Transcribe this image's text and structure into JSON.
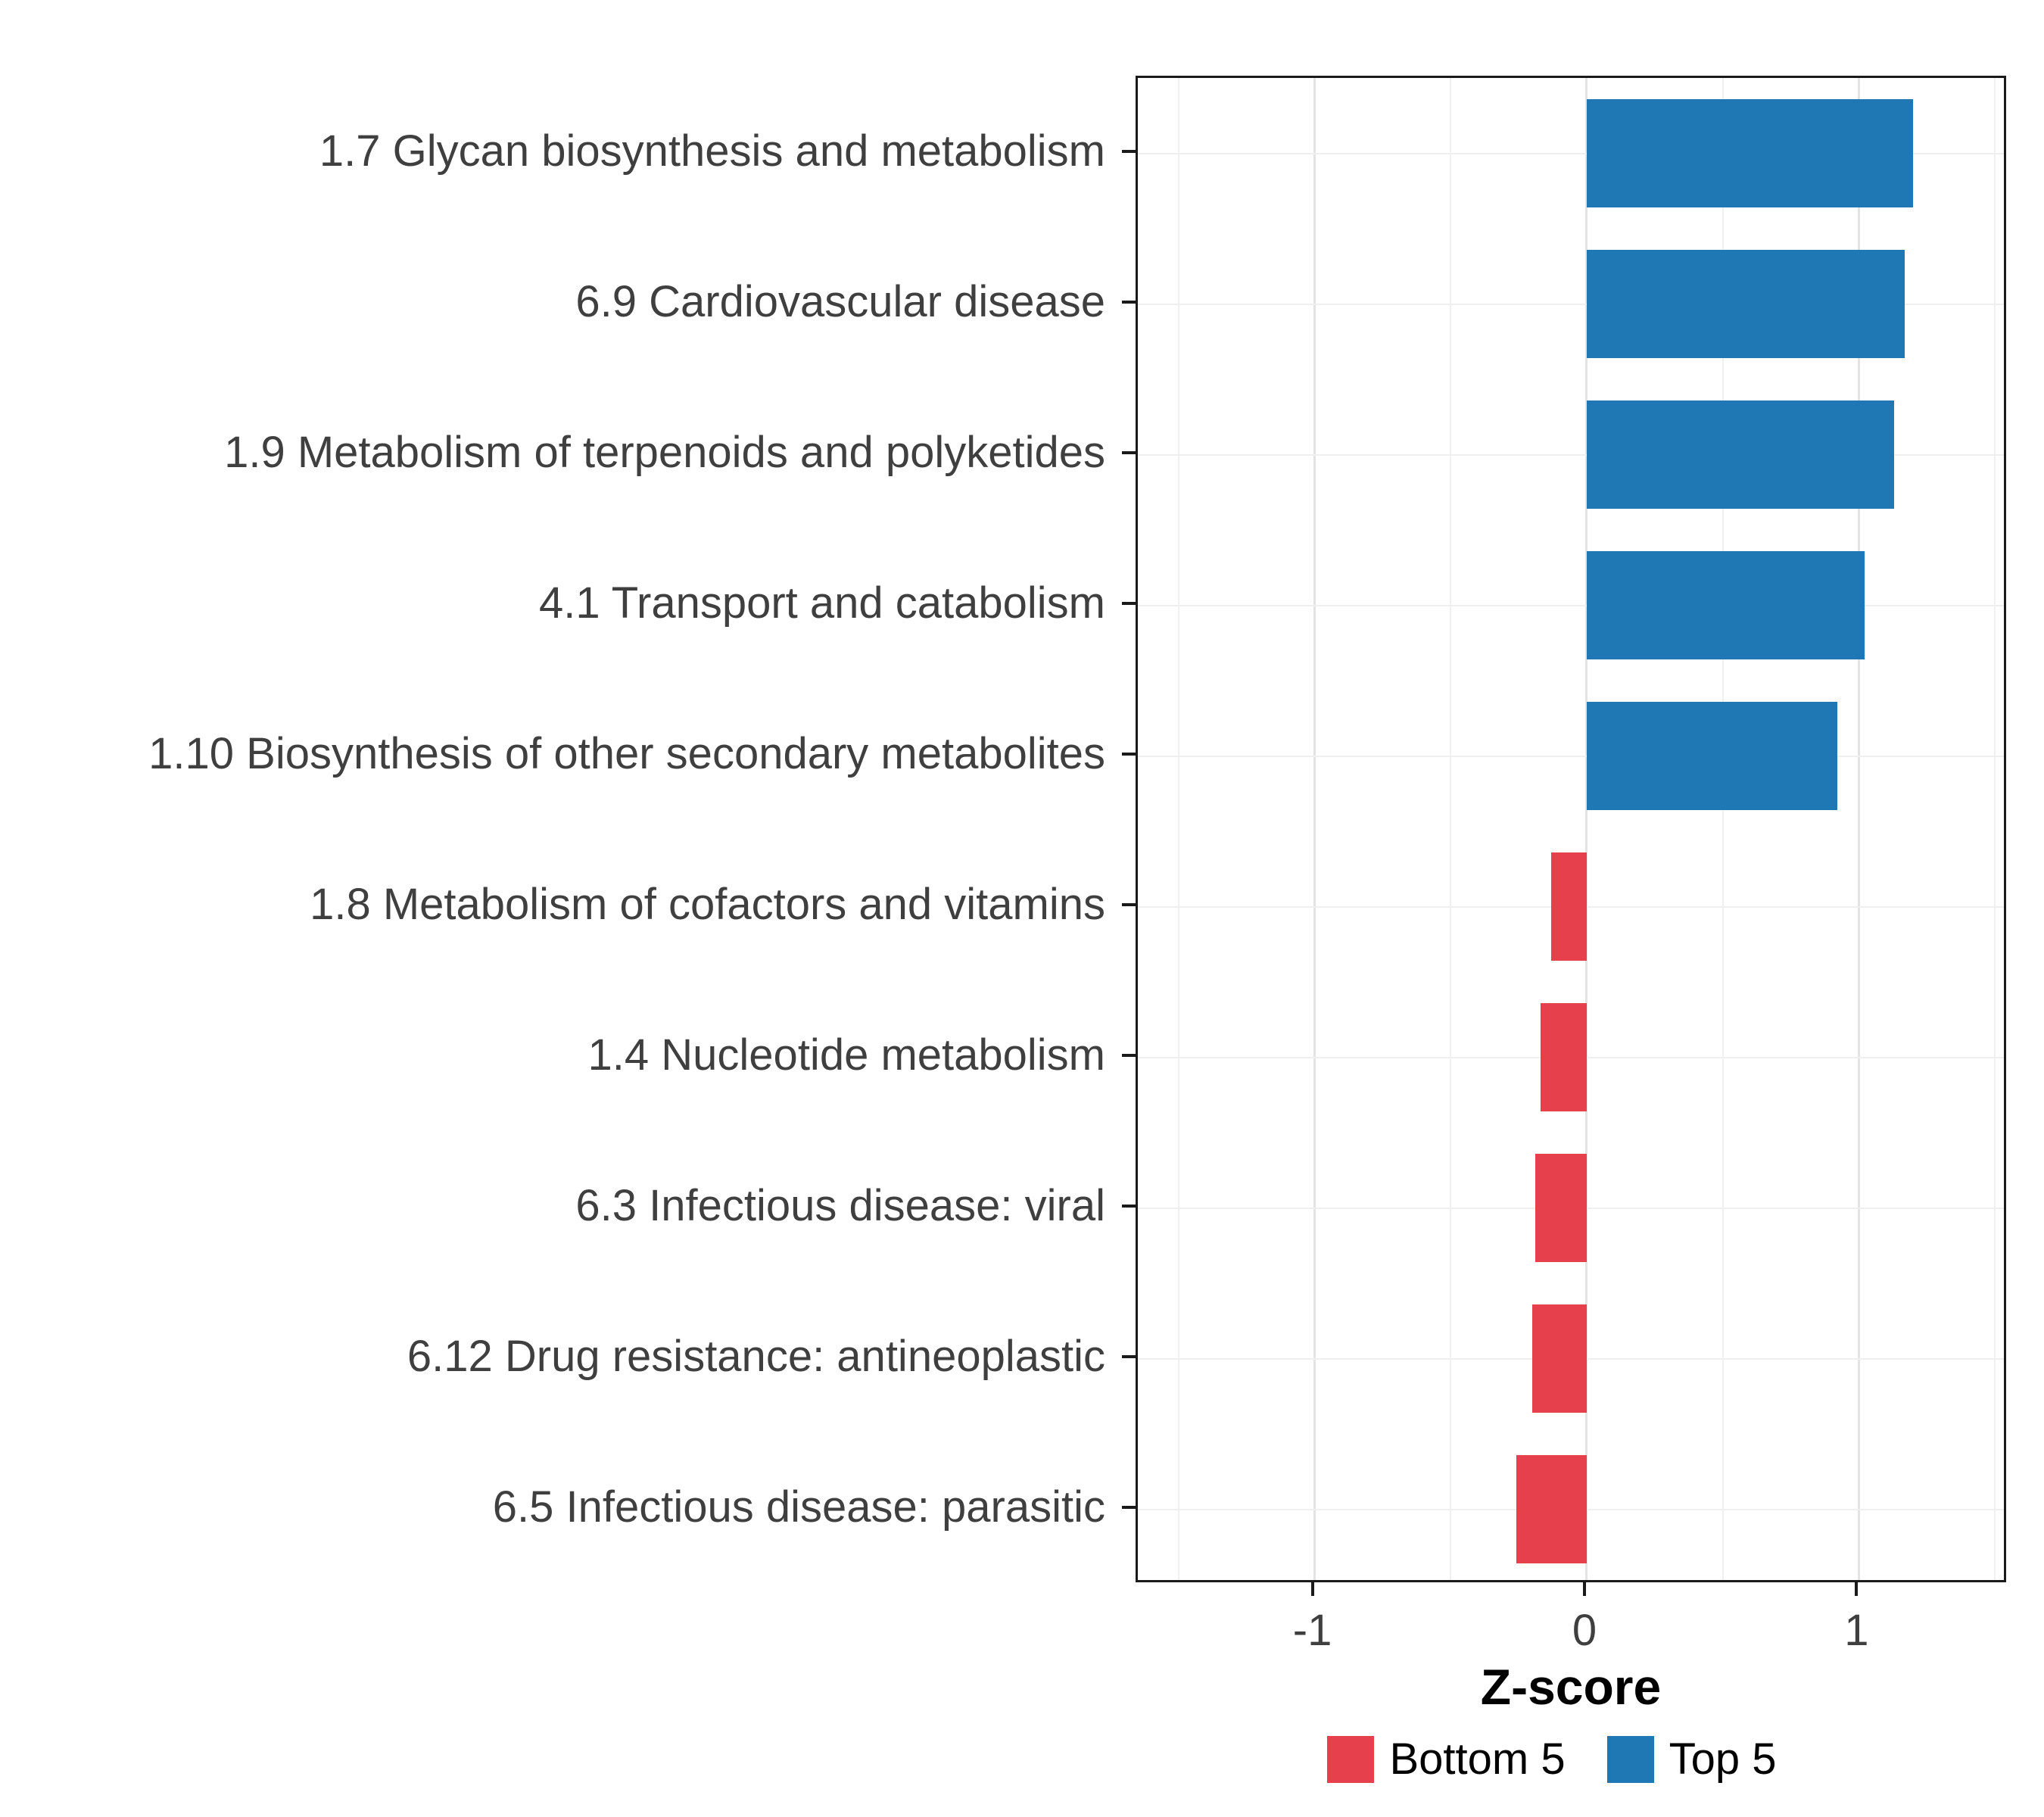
{
  "chart_data": {
    "type": "bar",
    "orientation": "horizontal",
    "title": "",
    "xlabel": "Z-score",
    "categories": [
      "1.7 Glycan biosynthesis and metabolism",
      "6.9 Cardiovascular disease",
      "1.9 Metabolism of terpenoids and polyketides",
      "4.1 Transport and catabolism",
      "1.10 Biosynthesis of other secondary metabolites",
      "1.8 Metabolism of cofactors and vitamins",
      "1.4 Nucleotide metabolism",
      "6.3 Infectious disease: viral",
      "6.12 Drug resistance: antineoplastic",
      "6.5 Infectious disease: parasitic"
    ],
    "values": [
      1.2,
      1.17,
      1.13,
      1.02,
      0.92,
      -0.13,
      -0.17,
      -0.19,
      -0.2,
      -0.26
    ],
    "groups": [
      "Top 5",
      "Top 5",
      "Top 5",
      "Top 5",
      "Top 5",
      "Bottom 5",
      "Bottom 5",
      "Bottom 5",
      "Bottom 5",
      "Bottom 5"
    ],
    "colors": {
      "Top 5": "#1F78B4",
      "Bottom 5": "#E6404C"
    },
    "x_ticks": [
      -1,
      0,
      1
    ],
    "x_minor_ticks": [
      -1.5,
      -0.5,
      0.5,
      1.5
    ],
    "x_range": [
      -1.65,
      1.55
    ],
    "grid": true,
    "legend_position": "bottom",
    "legend": [
      {
        "label": "Bottom 5",
        "color": "#E6404C"
      },
      {
        "label": "Top 5",
        "color": "#1F78B4"
      }
    ]
  }
}
